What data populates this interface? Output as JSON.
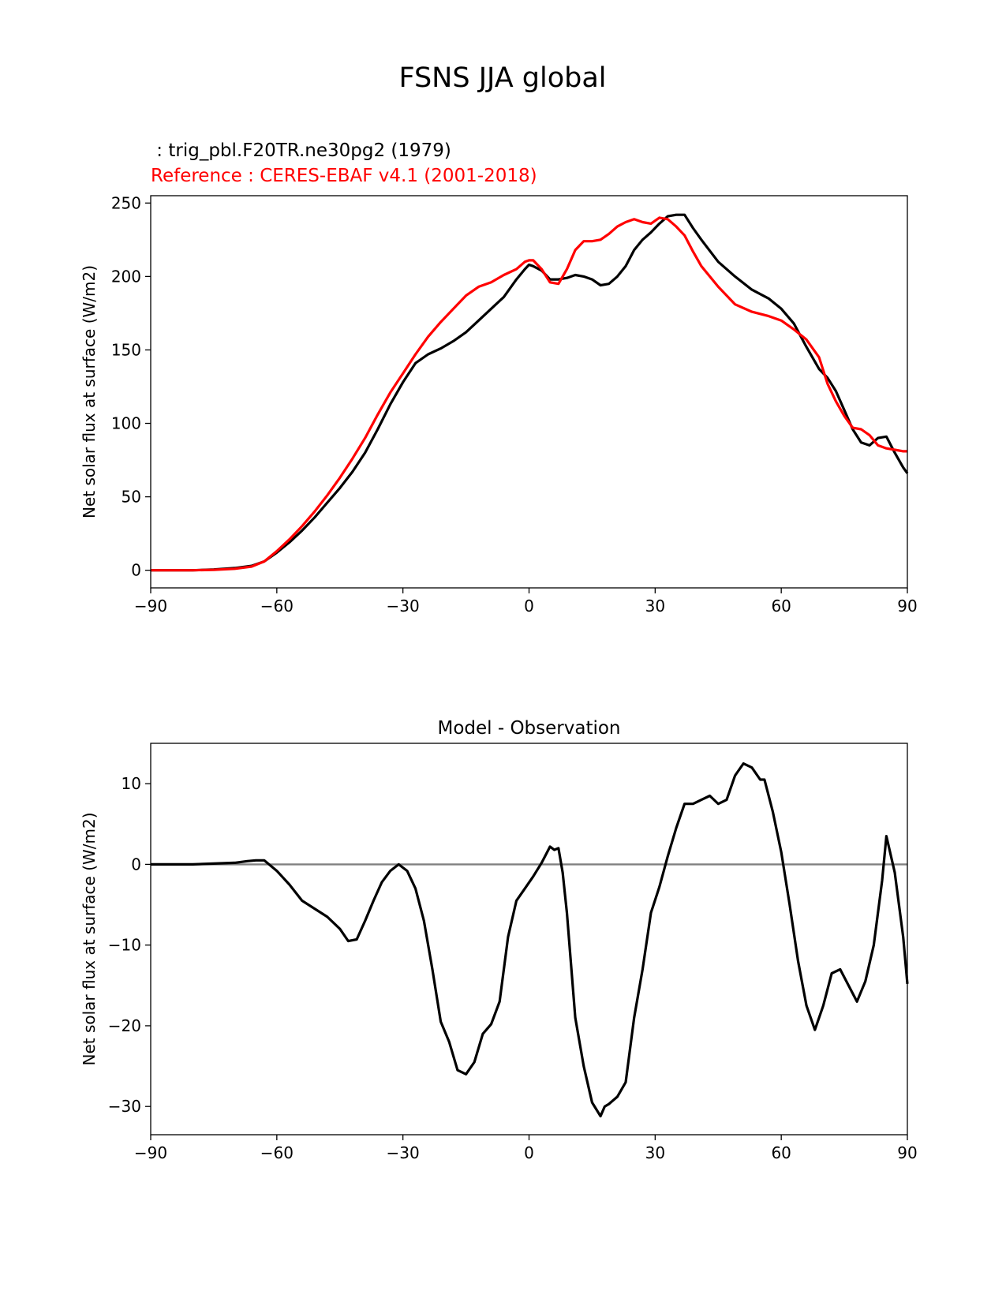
{
  "figure": {
    "title": "FSNS JJA global",
    "test_label": " : trig_pbl.F20TR.ne30pg2 (1979)",
    "ref_label": "Reference : CERES-EBAF v4.1 (2001-2018)",
    "colors": {
      "test": "#000000",
      "ref": "#ff0000",
      "zero_line": "#808080"
    }
  },
  "chart_data": [
    {
      "type": "line",
      "title": "",
      "xlabel": "",
      "ylabel": "Net solar flux at surface (W/m2)",
      "xlim": [
        -90,
        90
      ],
      "ylim": [
        -12,
        255
      ],
      "xticks": [
        -90,
        -60,
        -30,
        0,
        30,
        60,
        90
      ],
      "xtick_labels": [
        "−90",
        "−60",
        "−30",
        "0",
        "30",
        "60",
        "90"
      ],
      "yticks": [
        0,
        50,
        100,
        150,
        200,
        250
      ],
      "ytick_labels": [
        "0",
        "50",
        "100",
        "150",
        "200",
        "250"
      ],
      "grid": false,
      "series": [
        {
          "color": "#000000",
          "x": [
            -90,
            -80,
            -75,
            -70,
            -66,
            -63,
            -60,
            -57,
            -54,
            -51,
            -48,
            -45,
            -42,
            -39,
            -36,
            -33,
            -30,
            -27,
            -24,
            -21,
            -18,
            -15,
            -12,
            -9,
            -6,
            -3,
            -1,
            0,
            1,
            3,
            5,
            7,
            9,
            11,
            13,
            15,
            17,
            19,
            21,
            23,
            25,
            27,
            29,
            31,
            33,
            35,
            37,
            39,
            41,
            45,
            49,
            53,
            57,
            60,
            63,
            66,
            69,
            71,
            73,
            75,
            77,
            79,
            81,
            83,
            85,
            87,
            89,
            90
          ],
          "y": [
            0,
            0,
            0.5,
            1.5,
            3,
            6,
            12,
            19,
            27,
            36,
            46,
            56,
            67,
            80,
            96,
            113,
            128,
            141,
            147,
            151,
            156,
            162,
            170,
            178,
            186,
            198,
            205,
            208,
            207,
            204,
            198,
            198,
            199,
            201,
            200,
            198,
            194,
            195,
            200,
            207,
            218,
            225,
            230,
            236,
            241,
            242,
            242,
            233,
            225,
            210,
            200,
            191,
            185,
            178,
            168,
            152,
            137,
            131,
            122,
            109,
            96,
            87,
            85,
            90,
            91,
            80,
            70,
            66
          ]
        },
        {
          "color": "#ff0000",
          "x": [
            -90,
            -80,
            -75,
            -70,
            -66,
            -63,
            -60,
            -57,
            -54,
            -51,
            -48,
            -45,
            -42,
            -39,
            -36,
            -33,
            -30,
            -27,
            -24,
            -21,
            -18,
            -15,
            -12,
            -9,
            -6,
            -3,
            -1,
            0,
            1,
            3,
            5,
            7,
            9,
            11,
            13,
            15,
            17,
            19,
            21,
            23,
            25,
            27,
            29,
            31,
            33,
            35,
            37,
            39,
            41,
            45,
            49,
            53,
            57,
            60,
            63,
            66,
            69,
            71,
            73,
            75,
            77,
            79,
            81,
            83,
            85,
            87,
            89,
            90
          ],
          "y": [
            0,
            0,
            0.3,
            1,
            2.5,
            6,
            13,
            21,
            30,
            40,
            51,
            63,
            76,
            90,
            106,
            121,
            134,
            147,
            159,
            169,
            178,
            187,
            193,
            196,
            201,
            205,
            210,
            211,
            211,
            205,
            196,
            195,
            205,
            218,
            224,
            224,
            225,
            229,
            234,
            237,
            239,
            237,
            236,
            240,
            239,
            234,
            228,
            217,
            207,
            193,
            181,
            176,
            173,
            170,
            164,
            157,
            145,
            127,
            115,
            105,
            97,
            96,
            92,
            85,
            83,
            82,
            81,
            81
          ]
        }
      ]
    },
    {
      "type": "line",
      "title": "Model - Observation",
      "xlabel": "",
      "ylabel": "Net solar flux at surface (W/m2)",
      "xlim": [
        -90,
        90
      ],
      "ylim": [
        -33.5,
        15
      ],
      "xticks": [
        -90,
        -60,
        -30,
        0,
        30,
        60,
        90
      ],
      "xtick_labels": [
        "−90",
        "−60",
        "−30",
        "0",
        "30",
        "60",
        "90"
      ],
      "yticks": [
        -30,
        -20,
        -10,
        0,
        10
      ],
      "ytick_labels": [
        "−30",
        "−20",
        "−10",
        "0",
        "10"
      ],
      "grid": false,
      "hline": 0,
      "series": [
        {
          "color": "#000000",
          "x": [
            -90,
            -80,
            -75,
            -70,
            -67,
            -65,
            -63,
            -60,
            -57,
            -54,
            -51,
            -48,
            -45,
            -43,
            -41,
            -39,
            -37,
            -35,
            -33,
            -31,
            -29,
            -27,
            -25,
            -23,
            -21,
            -19,
            -17,
            -15,
            -13,
            -11,
            -9,
            -7,
            -5,
            -3,
            -1,
            1,
            3,
            5,
            6,
            7,
            8,
            9,
            11,
            13,
            15,
            17,
            18,
            19,
            21,
            23,
            25,
            27,
            29,
            31,
            33,
            35,
            37,
            39,
            41,
            43,
            45,
            47,
            49,
            51,
            53,
            55,
            56,
            58,
            60,
            62,
            64,
            66,
            68,
            70,
            72,
            74,
            76,
            78,
            80,
            82,
            84,
            85,
            87,
            89,
            90
          ],
          "y": [
            0,
            0,
            0.1,
            0.2,
            0.4,
            0.5,
            0.5,
            -0.8,
            -2.5,
            -4.5,
            -5.5,
            -6.5,
            -8,
            -9.5,
            -9.3,
            -7,
            -4.5,
            -2.2,
            -0.8,
            0,
            -0.8,
            -3,
            -7,
            -13,
            -19.5,
            -22,
            -25.5,
            -26,
            -24.5,
            -21,
            -19.8,
            -17,
            -9,
            -4.5,
            -3,
            -1.5,
            0.2,
            2.2,
            1.8,
            2,
            -1,
            -6,
            -19,
            -25,
            -29.5,
            -31.2,
            -30,
            -29.7,
            -28.8,
            -27,
            -19,
            -13,
            -6,
            -2.8,
            1,
            4.5,
            7.5,
            7.5,
            8,
            8.5,
            7.5,
            8,
            11,
            12.5,
            12,
            10.5,
            10.5,
            6.5,
            1.5,
            -5,
            -12,
            -17.5,
            -20.5,
            -17.5,
            -13.5,
            -13,
            -15,
            -17,
            -14.5,
            -10,
            -2,
            3.5,
            -1,
            -9,
            -14.8
          ]
        }
      ]
    }
  ]
}
